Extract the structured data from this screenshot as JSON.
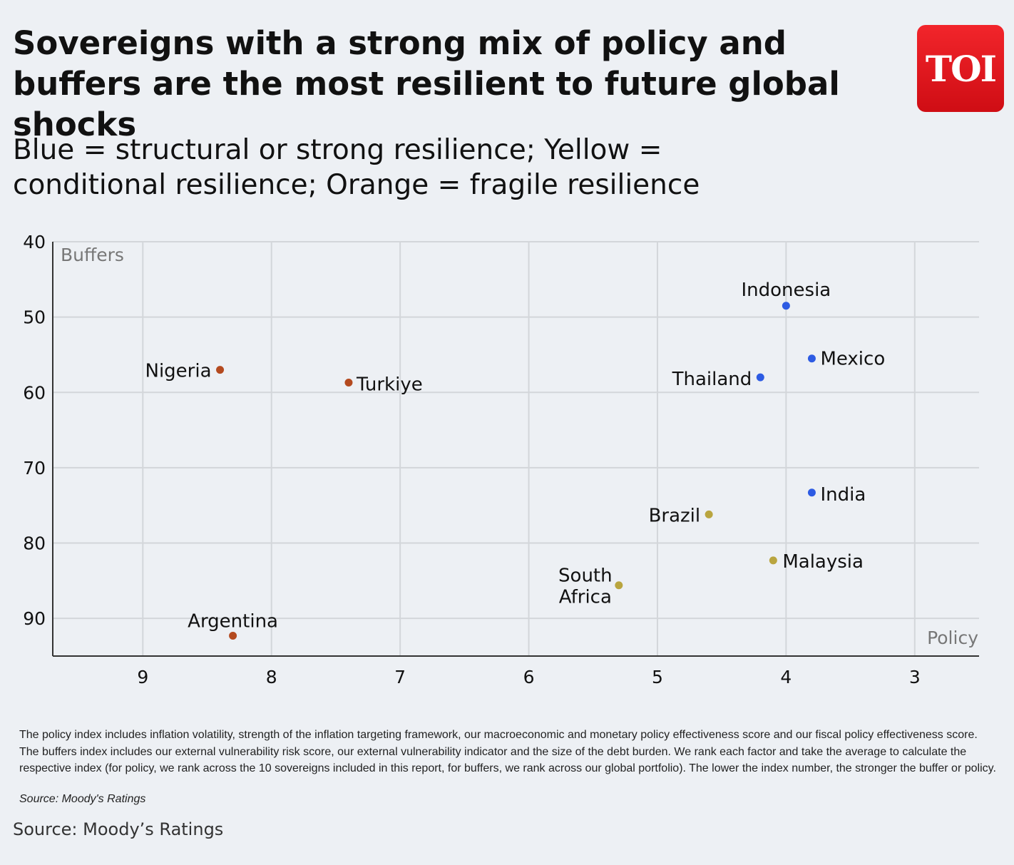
{
  "title": "Sovereigns with a strong mix of policy and buffers are the most resilient to future global shocks",
  "logo_text": "TOI",
  "subtitle": "Blue = structural or strong resilience; Yellow = conditional resilience; Orange = fragile resilience",
  "chart_data": {
    "type": "scatter",
    "xlabel": "Policy",
    "ylabel": "Buffers",
    "x_reversed": true,
    "y_reversed": true,
    "xlim": [
      9.7,
      2.5
    ],
    "ylim": [
      40,
      95
    ],
    "x_ticks": [
      9,
      8,
      7,
      6,
      5,
      4,
      3
    ],
    "y_ticks": [
      40,
      50,
      60,
      70,
      80,
      90
    ],
    "grid": true,
    "colors": {
      "blue": "#2d5be3",
      "yellow": "#b9a53f",
      "orange": "#b44a1f"
    },
    "points": [
      {
        "label": "Indonesia",
        "x": 4.0,
        "y": 48.5,
        "color": "blue"
      },
      {
        "label": "Mexico",
        "x": 3.8,
        "y": 55.5,
        "color": "blue"
      },
      {
        "label": "Thailand",
        "x": 4.2,
        "y": 58.0,
        "color": "blue"
      },
      {
        "label": "India",
        "x": 3.8,
        "y": 73.3,
        "color": "blue"
      },
      {
        "label": "Brazil",
        "x": 4.6,
        "y": 76.2,
        "color": "yellow"
      },
      {
        "label": "Malaysia",
        "x": 4.1,
        "y": 82.3,
        "color": "yellow"
      },
      {
        "label": "South Africa",
        "x": 5.3,
        "y": 85.6,
        "color": "yellow"
      },
      {
        "label": "Nigeria",
        "x": 8.4,
        "y": 57.0,
        "color": "orange"
      },
      {
        "label": "Turkiye",
        "x": 7.4,
        "y": 58.7,
        "color": "orange"
      },
      {
        "label": "Argentina",
        "x": 8.3,
        "y": 92.3,
        "color": "orange"
      }
    ]
  },
  "footnote": "The policy index includes inflation volatility, strength of the inflation targeting framework, our macroeconomic and monetary policy effectiveness score and our fiscal policy effectiveness score. The buffers index includes our external vulnerability risk score, our external vulnerability indicator and the size of the debt burden. We rank each factor and take the average to calculate the respective index (for policy, we rank across the 10 sovereigns included in this report, for buffers, we rank across our global portfolio). The lower the index number, the stronger the buffer or policy.",
  "footnote_source": "Source: Moody's Ratings",
  "page_source": "Source: Moody’s Ratings"
}
